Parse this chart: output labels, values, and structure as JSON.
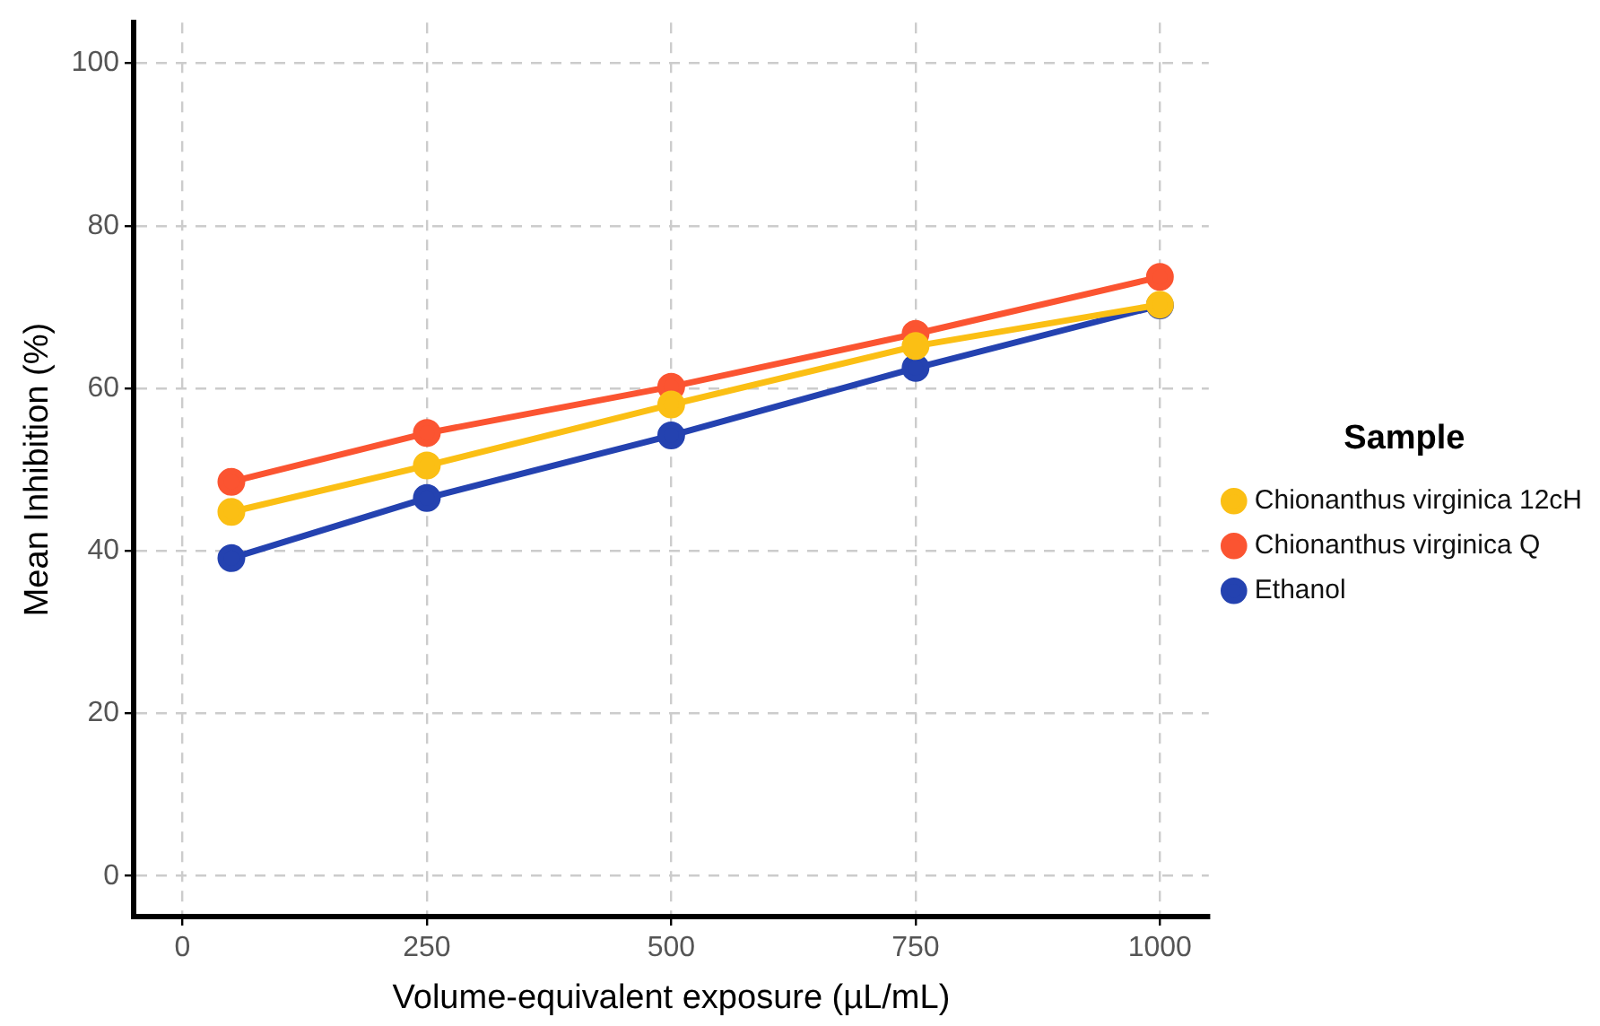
{
  "chart_data": {
    "type": "line",
    "xlabel": "Volume-equivalent exposure (µL/mL)",
    "ylabel": "Mean Inhibition (%)",
    "legend_title": "Sample",
    "x": [
      50,
      250,
      500,
      750,
      1000
    ],
    "series": [
      {
        "name": "Chionanthus virginica 12cH",
        "color": "#fbbf14",
        "values": [
          44.8,
          50.5,
          58.0,
          65.2,
          70.3
        ]
      },
      {
        "name": "Chionanthus virginica Q",
        "color": "#fb5431",
        "values": [
          48.5,
          54.5,
          60.2,
          66.7,
          73.7
        ]
      },
      {
        "name": "Ethanol",
        "color": "#2442b0",
        "values": [
          39.1,
          46.5,
          54.2,
          62.5,
          70.2
        ]
      }
    ],
    "xlim": [
      -50,
      1050
    ],
    "xticks": [
      0,
      250,
      500,
      750,
      1000
    ],
    "ylim": [
      -5,
      105
    ],
    "yticks": [
      0,
      20,
      40,
      60,
      80,
      100
    ],
    "grid": true,
    "legend": "right",
    "marker": "circle",
    "line_style": "solid"
  }
}
